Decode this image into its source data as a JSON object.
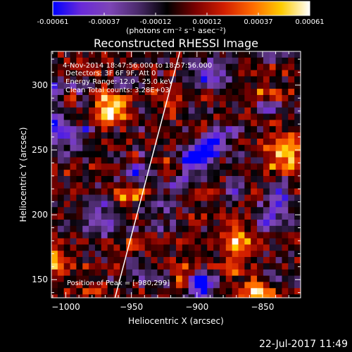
{
  "colorbar": {
    "ticks": [
      "-0.00061",
      "-0.00037",
      "-0.00012",
      "0.00012",
      "0.00037",
      "0.00061"
    ],
    "units": "(photons cm⁻² s⁻¹ asec⁻²)",
    "min": -0.00061,
    "max": 0.00061
  },
  "title": "Reconstructed RHESSI Image",
  "annotations": {
    "time_range": "4-Nov-2014 18:47:56.000 to 18:57:56.000",
    "detectors": "Detectors: 3F 6F 9F, Att 0",
    "energy_range": "Energy Range: 12.0 - 25.0 keV",
    "clean": "Clean    Total counts: 3.28E+03",
    "peak": "Position of Peak = [-980,299]"
  },
  "xlabel": "Heliocentric X (arcsec)",
  "ylabel": "Heliocentric Y (arcsec)",
  "footer_timestamp": "22-Jul-2017 11:49",
  "chart_data": {
    "type": "heatmap",
    "title": "Reconstructed RHESSI Image",
    "xlabel": "Heliocentric X (arcsec)",
    "ylabel": "Heliocentric Y (arcsec)",
    "xlim": [
      -1011,
      -821
    ],
    "ylim": [
      136,
      326
    ],
    "xticks": [
      -1000,
      -950,
      -900,
      -850
    ],
    "yticks": [
      150,
      200,
      250,
      300
    ],
    "xtick_labels": [
      "−1000",
      "−950",
      "−900",
      "−850"
    ],
    "ytick_labels": [
      "150",
      "200",
      "250",
      "300"
    ],
    "value_range": [
      -0.00061,
      0.00061
    ],
    "colormap": [
      "#0000ff",
      "#6a2ad8",
      "#7d45b6",
      "#4a2a6a",
      "#000000",
      "#7a0000",
      "#d21e00",
      "#ff6a00",
      "#ffcc00",
      "#ffffff"
    ],
    "limb_line": [
      [
        -962.5,
        136
      ],
      [
        -913,
        326
      ]
    ],
    "peak_position": [
      -980,
      299
    ],
    "grid": false
  }
}
